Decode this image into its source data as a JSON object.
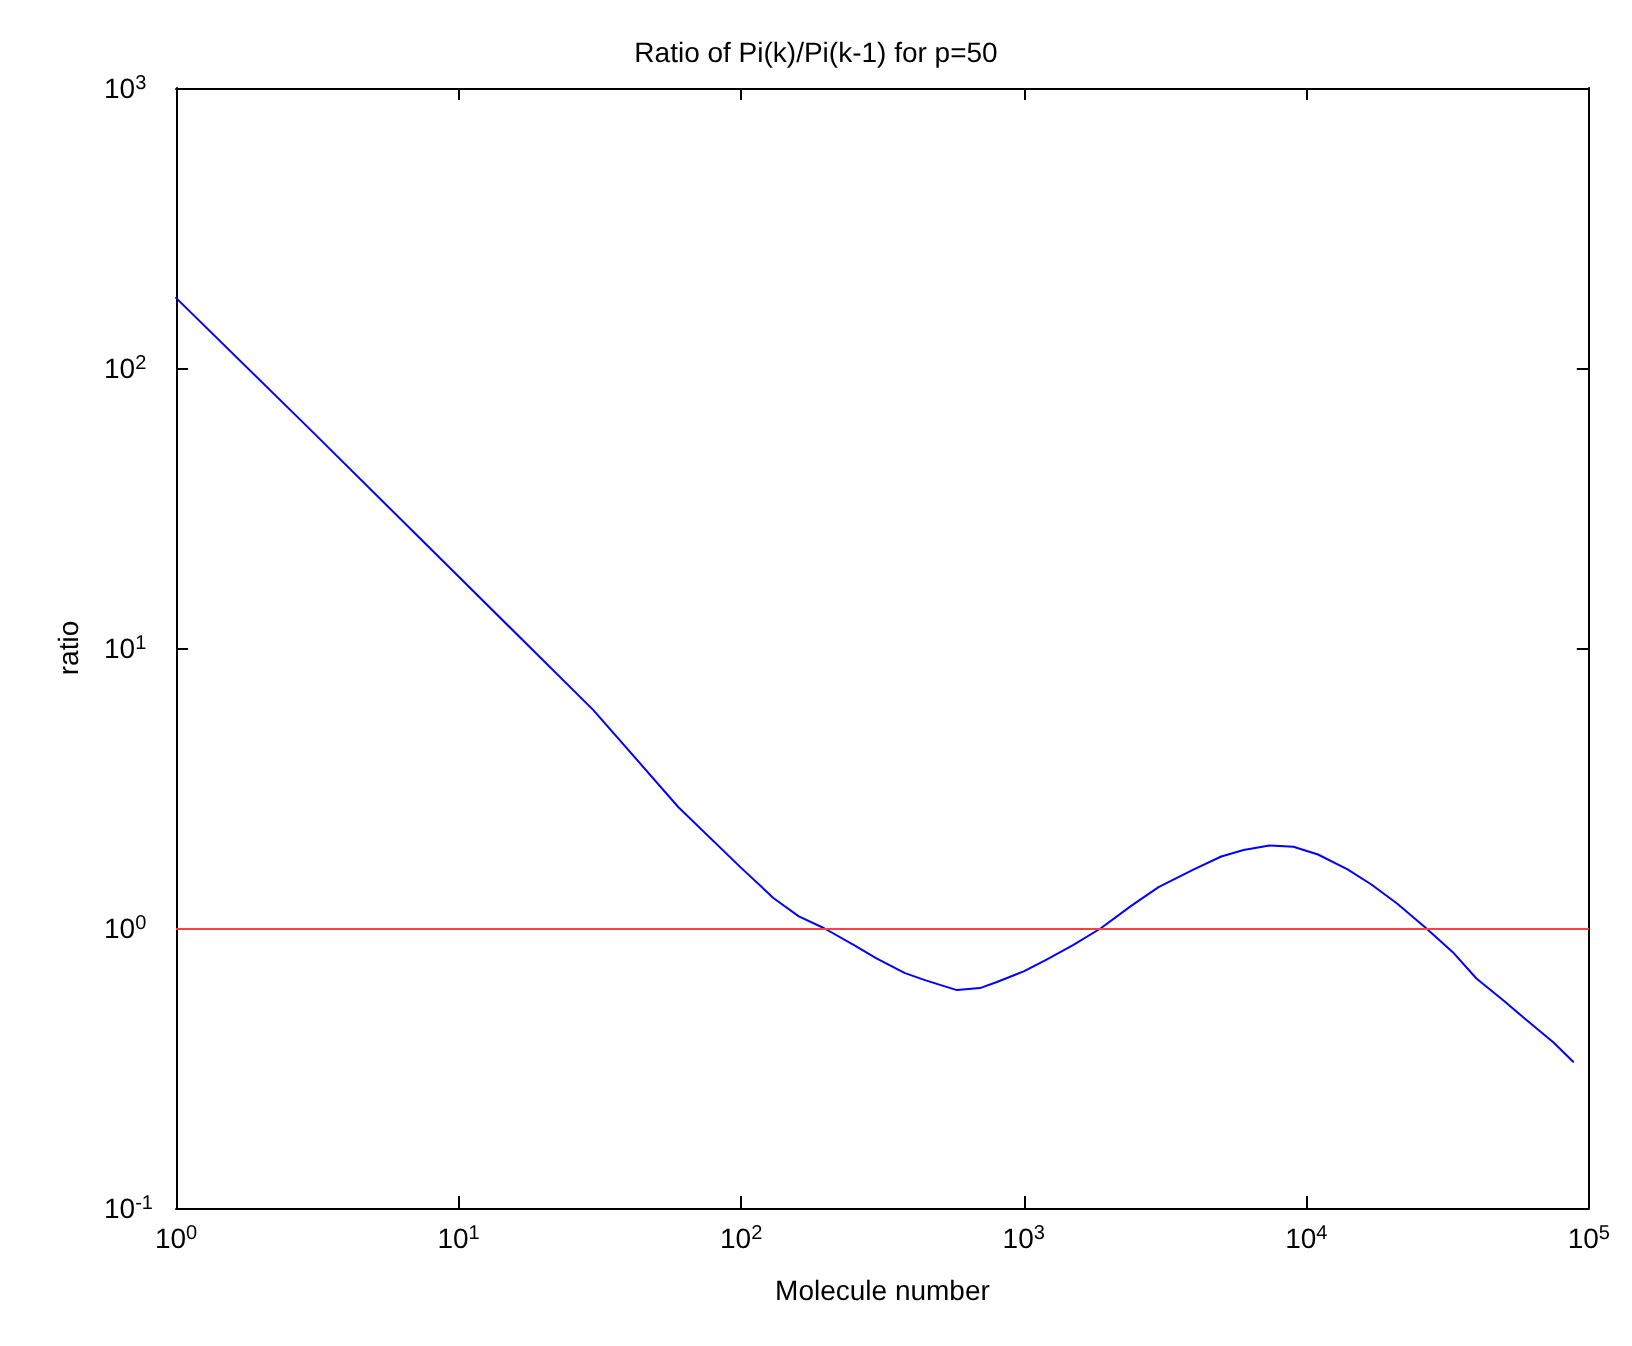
{
  "chart_data": {
    "type": "line",
    "title": "Ratio of Pi(k)/Pi(k-1) for p=50",
    "xlabel": "Molecule number",
    "ylabel": "ratio",
    "log": "xy",
    "grid": false,
    "marker": "none",
    "line_style": "solid",
    "x": [
      1,
      3,
      10,
      30,
      60,
      100,
      130,
      160,
      196,
      250,
      300,
      380,
      450,
      580,
      700,
      800,
      1000,
      1200,
      1500,
      1880,
      2400,
      3000,
      4000,
      5000,
      6000,
      7400,
      9000,
      11000,
      14000,
      17000,
      21000,
      26500,
      33000,
      40000,
      50000,
      60000,
      75000,
      88000
    ],
    "series": [
      {
        "color": "#0000ff",
        "values": [
          178,
          60,
          18,
          6.0,
          2.7,
          1.64,
          1.28,
          1.1,
          1.0,
          0.87,
          0.78,
          0.69,
          0.65,
          0.6,
          0.61,
          0.64,
          0.7,
          0.77,
          0.87,
          1.0,
          1.2,
          1.4,
          1.62,
          1.8,
          1.9,
          1.97,
          1.95,
          1.83,
          1.62,
          1.43,
          1.22,
          1.0,
          0.82,
          0.66,
          0.55,
          0.47,
          0.39,
          0.333
        ]
      }
    ],
    "xlim": [
      1,
      100000
    ],
    "ylim": [
      0.1,
      1000
    ],
    "xticks": [
      {
        "value": 1,
        "label": "10$^{0}$"
      },
      {
        "value": 10,
        "label": "10$^{1}$"
      },
      {
        "value": 100,
        "label": "10$^{2}$"
      },
      {
        "value": 1000,
        "label": "10$^{3}$"
      },
      {
        "value": 10000,
        "label": "10$^{4}$"
      },
      {
        "value": 100000,
        "label": "10$^{5}$"
      }
    ],
    "yticks": [
      {
        "value": 0.1,
        "label": "10$^{-1}$"
      },
      {
        "value": 1,
        "label": "10$^{0}$"
      },
      {
        "value": 10,
        "label": "10$^{1}$"
      },
      {
        "value": 100,
        "label": "10$^{2}$"
      },
      {
        "value": 1000,
        "label": "10$^{3}$"
      }
    ],
    "ref_lines": [
      {
        "axis": "y",
        "value": 1,
        "color": "#ff4040"
      }
    ]
  }
}
